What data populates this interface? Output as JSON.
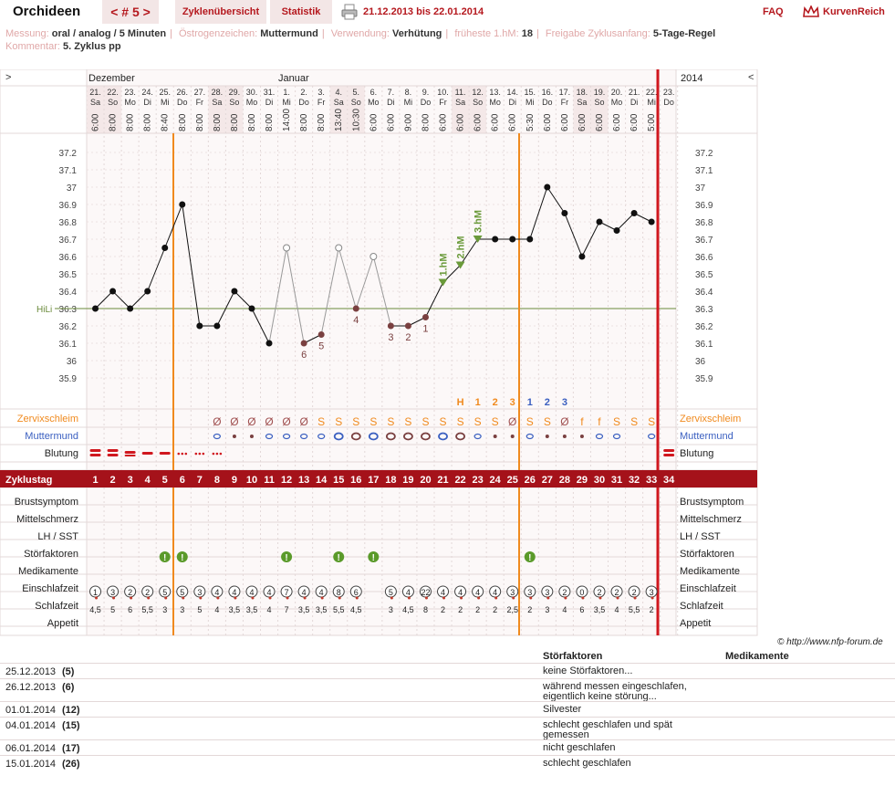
{
  "app": {
    "title": "Orchideen",
    "cycle_nav": "< # 5 >",
    "tab_cycles": "Zyklenübersicht",
    "tab_stats": "Statistik",
    "date_range": "21.12.2013 bis 22.01.2014",
    "faq": "FAQ",
    "brand": "KurvenReich"
  },
  "info": {
    "messung_label": "Messung:",
    "messung_value": "oral / analog / 5 Minuten",
    "oestrogen_label": "Östrogenzeichen:",
    "oestrogen_value": "Muttermund",
    "verwendung_label": "Verwendung:",
    "verwendung_value": "Verhütung",
    "hm_label": "früheste 1.hM:",
    "hm_value": "18",
    "freigabe_label": "Freigabe Zyklusanfang:",
    "freigabe_value": "5-Tage-Regel",
    "kommentar_label": "Kommentar:",
    "kommentar_value": "5. Zyklus pp"
  },
  "chart_data": {
    "type": "line",
    "year": "2014",
    "months": [
      "Dezember",
      "Januar"
    ],
    "nav_prev": ">",
    "nav_next": "<",
    "hili_label": "HiLi",
    "hili_value": 36.3,
    "ylim": [
      35.9,
      37.2
    ],
    "yticks": [
      "37.2",
      "37.1",
      "37",
      "36.9",
      "36.8",
      "36.7",
      "36.6",
      "36.5",
      "36.4",
      "36.3",
      "36.2",
      "36.1",
      "36",
      "35.9"
    ],
    "days": [
      {
        "d": "21.",
        "w": "Sa",
        "t": "6:00",
        "temp": 36.3,
        "cd": 1,
        "bl": "heavy",
        "ez": "1",
        "ezd": true,
        "sz": "4,5"
      },
      {
        "d": "22.",
        "w": "So",
        "t": "8:00",
        "temp": 36.4,
        "cd": 2,
        "bl": "heavy",
        "ez": "3",
        "ezd": true,
        "sz": "5"
      },
      {
        "d": "23.",
        "w": "Mo",
        "t": "8:00",
        "temp": 36.3,
        "cd": 3,
        "bl": "medium",
        "ez": "2",
        "ezd": true,
        "sz": "6"
      },
      {
        "d": "24.",
        "w": "Di",
        "t": "8:00",
        "temp": 36.4,
        "cd": 4,
        "bl": "light",
        "ez": "2",
        "ezd": true,
        "sz": "5,5"
      },
      {
        "d": "25.",
        "w": "Mi",
        "t": "8:40",
        "temp": 36.65,
        "cd": 5,
        "bl": "light",
        "ez": "5",
        "ezd": true,
        "sz": "3",
        "st": true
      },
      {
        "d": "26.",
        "w": "Do",
        "t": "8:00",
        "temp": 36.9,
        "cd": 6,
        "bl": "spot",
        "ez": "5",
        "ezd": true,
        "sz": "3",
        "st": true
      },
      {
        "d": "27.",
        "w": "Fr",
        "t": "8:00",
        "temp": 36.2,
        "cd": 7,
        "bl": "spot",
        "ez": "3",
        "ezd": true,
        "sz": "5"
      },
      {
        "d": "28.",
        "w": "Sa",
        "t": "8:00",
        "temp": 36.2,
        "cd": 8,
        "bl": "spot",
        "zs": "Ø",
        "mm": "o",
        "ez": "4",
        "ezd": true,
        "sz": "4"
      },
      {
        "d": "29.",
        "w": "So",
        "t": "8:00",
        "temp": 36.4,
        "cd": 9,
        "zs": "Ø",
        "mm": "dot",
        "ez": "4",
        "ezd": true,
        "sz": "3,5"
      },
      {
        "d": "30.",
        "w": "Mo",
        "t": "8:00",
        "temp": 36.3,
        "cd": 10,
        "zs": "Ø",
        "mm": "dot",
        "ez": "4",
        "ezd": true,
        "sz": "3,5"
      },
      {
        "d": "31.",
        "w": "Di",
        "t": "8:00",
        "temp": 36.1,
        "cd": 11,
        "zs": "Ø",
        "mm": "o",
        "ez": "4",
        "ezd": true,
        "sz": "4"
      },
      {
        "d": "1.",
        "w": "Mi",
        "t": "14:00",
        "temp": 36.65,
        "ex": true,
        "cd": 12,
        "zs": "Ø",
        "mm": "o",
        "ez": "7",
        "ezd": true,
        "sz": "7",
        "st": true
      },
      {
        "d": "2.",
        "w": "Do",
        "t": "8:00",
        "temp": 36.1,
        "lbl": "6",
        "cd": 13,
        "zs": "Ø",
        "mm": "o",
        "ez": "4",
        "ezd": true,
        "sz": "3,5"
      },
      {
        "d": "3.",
        "w": "Fr",
        "t": "8:00",
        "temp": 36.15,
        "lbl": "5",
        "cd": 14,
        "zs": "S",
        "mm": "o",
        "ez": "4",
        "ezd": true,
        "sz": "3,5"
      },
      {
        "d": "4.",
        "w": "Sa",
        "t": "13:40",
        "temp": 36.65,
        "ex": true,
        "cd": 15,
        "zs": "S",
        "mm": "O",
        "ez": "8",
        "ezd": true,
        "sz": "5,5",
        "st": true
      },
      {
        "d": "5.",
        "w": "So",
        "t": "10:30",
        "temp": 36.3,
        "lbl": "4",
        "cd": 16,
        "zs": "S",
        "mm": "Obig",
        "ez": "6",
        "ezd": true,
        "sz": "4,5"
      },
      {
        "d": "6.",
        "w": "Mo",
        "t": "6:00",
        "temp": 36.6,
        "ex": true,
        "cd": 17,
        "zs": "S",
        "mm": "O",
        "sz": "",
        "st": true
      },
      {
        "d": "7.",
        "w": "Di",
        "t": "6:00",
        "temp": 36.2,
        "lbl": "3",
        "cd": 18,
        "zs": "S",
        "mm": "Obig",
        "ez": "5",
        "ezd": true,
        "sz": "3"
      },
      {
        "d": "8.",
        "w": "Mi",
        "t": "9:00",
        "temp": 36.2,
        "lbl": "2",
        "cd": 19,
        "zs": "S",
        "mm": "Obig",
        "ez": "4",
        "ezd": true,
        "sz": "4,5"
      },
      {
        "d": "9.",
        "w": "Do",
        "t": "8:00",
        "temp": 36.25,
        "lbl": "1",
        "cd": 20,
        "zs": "S",
        "mm": "Obig",
        "ez": "22",
        "ezd": true,
        "sz": "8"
      },
      {
        "d": "10.",
        "w": "Fr",
        "t": "6:00",
        "temp": 36.45,
        "hm": "1.hM",
        "cd": 21,
        "zs": "S",
        "mm": "O",
        "ez": "4",
        "ezd": true,
        "sz": "2"
      },
      {
        "d": "11.",
        "w": "Sa",
        "t": "6:00",
        "temp": 36.55,
        "hm": "2.hM",
        "top": "H",
        "cd": 22,
        "zs": "S",
        "mm": "Obig",
        "ez": "4",
        "ezd": true,
        "sz": "2"
      },
      {
        "d": "12.",
        "w": "So",
        "t": "6:00",
        "temp": 36.7,
        "hm": "3.hM",
        "top": "1",
        "cd": 23,
        "zs": "S",
        "mm": "o",
        "ez": "4",
        "ezd": true,
        "sz": "2"
      },
      {
        "d": "13.",
        "w": "Mo",
        "t": "6:00",
        "temp": 36.7,
        "top": "2",
        "cd": 24,
        "zs": "S",
        "mm": "dot",
        "ez": "4",
        "ezd": true,
        "sz": "2"
      },
      {
        "d": "14.",
        "w": "Di",
        "t": "6:00",
        "temp": 36.7,
        "top": "3",
        "cd": 25,
        "zs": "Ø",
        "mm": "dot",
        "ez": "3",
        "ezd": true,
        "sz": "2,5"
      },
      {
        "d": "15.",
        "w": "Mi",
        "t": "5:30",
        "temp": 36.7,
        "top": "1",
        "topc": "blue",
        "cd": 26,
        "zs": "S",
        "mm": "o",
        "ez": "3",
        "ezd": true,
        "sz": "2",
        "st": true
      },
      {
        "d": "16.",
        "w": "Do",
        "t": "6:00",
        "temp": 37.0,
        "top": "2",
        "topc": "blue",
        "cd": 27,
        "zs": "S",
        "mm": "dot",
        "ez": "3",
        "ezd": true,
        "sz": "3"
      },
      {
        "d": "17.",
        "w": "Fr",
        "t": "6:00",
        "temp": 36.85,
        "top": "3",
        "topc": "blue",
        "cd": 28,
        "zs": "Ø",
        "mm": "dot",
        "ez": "2",
        "ezd": true,
        "sz": "4"
      },
      {
        "d": "18.",
        "w": "Sa",
        "t": "6:00",
        "temp": 36.6,
        "cd": 29,
        "zs": "f",
        "mm": "dot",
        "ez": "0",
        "ezd": true,
        "sz": "6"
      },
      {
        "d": "19.",
        "w": "So",
        "t": "6:00",
        "temp": 36.8,
        "cd": 30,
        "zs": "f",
        "mm": "o",
        "ez": "2",
        "ezd": true,
        "sz": "3,5"
      },
      {
        "d": "20.",
        "w": "Mo",
        "t": "6:00",
        "temp": 36.75,
        "cd": 31,
        "zs": "S",
        "mm": "o",
        "ez": "2",
        "ezd": true,
        "sz": "4"
      },
      {
        "d": "21.",
        "w": "Di",
        "t": "6:00",
        "temp": 36.85,
        "cd": 32,
        "zs": "S",
        "ez": "2",
        "ezd": true,
        "sz": "5,5"
      },
      {
        "d": "22.",
        "w": "Mi",
        "t": "5:00",
        "temp": 36.8,
        "cd": 33,
        "zs": "S",
        "mm": "o",
        "ez": "3",
        "ezd": true,
        "sz": "2"
      },
      {
        "d": "23.",
        "w": "Do",
        "t": "",
        "cd": 34,
        "bl": "heavy"
      }
    ]
  },
  "rows": {
    "zervix": "Zervixschleim",
    "mutter": "Muttermund",
    "blutung": "Blutung",
    "zyklustag": "Zyklustag",
    "brust": "Brustsymptom",
    "mittel": "Mittelschmerz",
    "lh": "LH / SST",
    "stoer": "Störfaktoren",
    "medi": "Medikamente",
    "einschlaf": "Einschlafzeit",
    "schlaf": "Schlafzeit",
    "appetit": "Appetit"
  },
  "colors": {
    "brand": "#b5181e",
    "orange": "#f08a1e",
    "green": "#5a8a2a",
    "blue": "#3a5fc0",
    "hm": "#6a9a3a"
  },
  "copyright": "© http://www.nfp-forum.de",
  "notes": {
    "head_stoer": "Störfaktoren",
    "head_medi": "Medikamente",
    "items": [
      {
        "date": "25.12.2013",
        "day": "(5)",
        "text": "keine Störfaktoren..."
      },
      {
        "date": "26.12.2013",
        "day": "(6)",
        "text": "während messen eingeschlafen, eigentlich keine störung..."
      },
      {
        "date": "01.01.2014",
        "day": "(12)",
        "text": "Silvester"
      },
      {
        "date": "04.01.2014",
        "day": "(15)",
        "text": "schlecht geschlafen und spät gemessen"
      },
      {
        "date": "06.01.2014",
        "day": "(17)",
        "text": "nicht geschlafen"
      },
      {
        "date": "15.01.2014",
        "day": "(26)",
        "text": "schlecht geschlafen"
      }
    ]
  }
}
